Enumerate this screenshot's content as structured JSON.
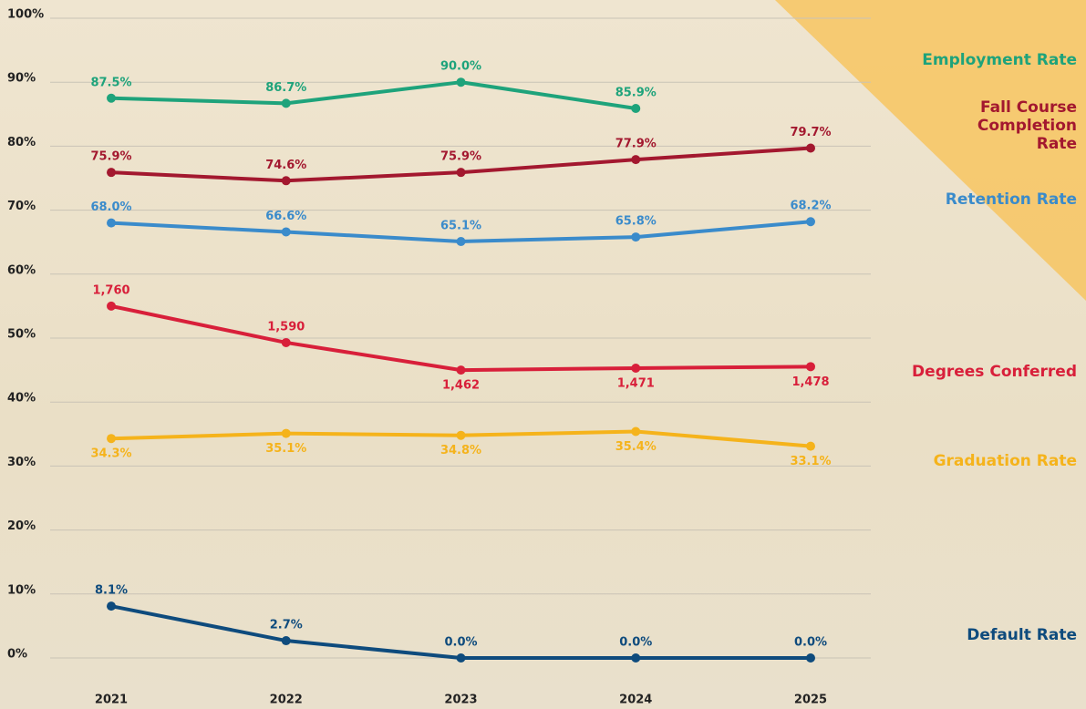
{
  "chart_data": {
    "type": "line",
    "categories": [
      "2021",
      "2022",
      "2023",
      "2024",
      "2025"
    ],
    "ylim": [
      0,
      100
    ],
    "yticks": [
      {
        "value": 0,
        "label": "0%"
      },
      {
        "value": 10,
        "label": "10%"
      },
      {
        "value": 20,
        "label": "20%"
      },
      {
        "value": 30,
        "label": "30%"
      },
      {
        "value": 40,
        "label": "40%"
      },
      {
        "value": 50,
        "label": "50%"
      },
      {
        "value": 60,
        "label": "60%"
      },
      {
        "value": 70,
        "label": "70%"
      },
      {
        "value": 80,
        "label": "80%"
      },
      {
        "value": 90,
        "label": "90%"
      },
      {
        "value": 100,
        "label": "100%"
      }
    ],
    "y2lim": [
      121,
      3101
    ],
    "grid": true,
    "series": [
      {
        "name": "Employment Rate",
        "color": "#1ea37b",
        "values": [
          87.5,
          86.7,
          90.0,
          85.9,
          null
        ],
        "value_labels": [
          "87.5%",
          "86.7%",
          "90.0%",
          "85.9%",
          null
        ]
      },
      {
        "name": "Fall Course Completion Rate",
        "color": "#a3182f",
        "values": [
          75.9,
          74.6,
          75.9,
          77.9,
          79.7
        ],
        "value_labels": [
          "75.9%",
          "74.6%",
          "75.9%",
          "77.9%",
          "79.7%"
        ]
      },
      {
        "name": "Retention Rate",
        "color": "#3a8bcb",
        "values": [
          68.0,
          66.6,
          65.1,
          65.8,
          68.2
        ],
        "value_labels": [
          "68.0%",
          "66.6%",
          "65.1%",
          "65.8%",
          "68.2%"
        ]
      },
      {
        "name": "Degrees Conferred",
        "color": "#d81f3a",
        "axis": "y2",
        "values": [
          1760,
          1590,
          1462,
          1471,
          1478
        ],
        "value_labels": [
          "1,760",
          "1,590",
          "1,462",
          "1,471",
          "1,478"
        ]
      },
      {
        "name": "Graduation Rate",
        "color": "#f5b31b",
        "values": [
          34.3,
          35.1,
          34.8,
          35.4,
          33.1
        ],
        "value_labels": [
          "34.3%",
          "35.1%",
          "34.8%",
          "35.4%",
          "33.1%"
        ]
      },
      {
        "name": "Default Rate",
        "color": "#0e4b7d",
        "values": [
          8.1,
          2.7,
          0.0,
          0.0,
          0.0
        ],
        "value_labels": [
          "8.1%",
          "2.7%",
          "0.0%",
          "0.0%",
          "0.0%"
        ]
      }
    ]
  }
}
